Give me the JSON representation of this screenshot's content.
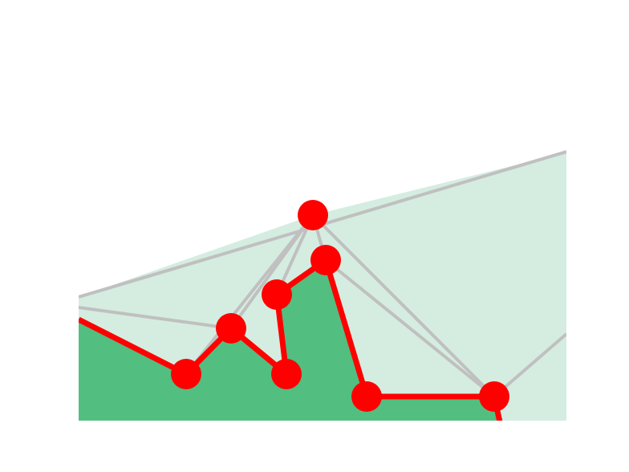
{
  "diagram": {
    "colors": {
      "background": "#ffffff",
      "light_fill": "#d4ede0",
      "dark_fill": "#52be80",
      "edge_gray": "#c0c0c0",
      "path_red": "#ff0000"
    },
    "nodes": [
      {
        "id": "n1"
      },
      {
        "id": "n2"
      },
      {
        "id": "n3"
      },
      {
        "id": "n4"
      },
      {
        "id": "n5"
      },
      {
        "id": "n6"
      },
      {
        "id": "n7"
      },
      {
        "id": "n8"
      },
      {
        "id": "n9"
      }
    ],
    "red_path_order": [
      "n1",
      "n2",
      "n6",
      "n5",
      "n7",
      "n8",
      "n9"
    ],
    "gray_edges": [
      [
        "n4",
        "n2"
      ],
      [
        "n4",
        "n5"
      ],
      [
        "n4",
        "n6"
      ],
      [
        "n4",
        "n7"
      ],
      [
        "n4",
        "n9"
      ],
      [
        "n7",
        "n9"
      ]
    ]
  }
}
